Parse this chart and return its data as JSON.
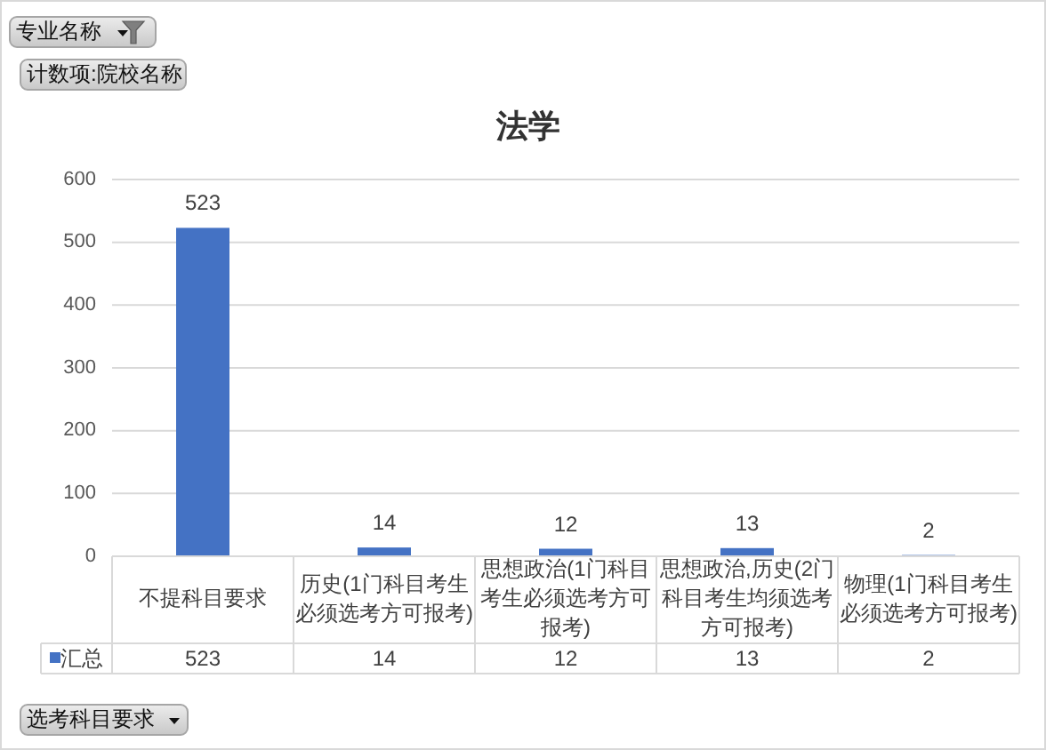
{
  "chart_data": {
    "type": "bar",
    "title": "法学",
    "ylabel": "计数项:院校名称",
    "xlabel": "选考科目要求",
    "annotations": [
      "专业名称",
      {
        "text": "523",
        "x": "不提科目要求",
        "y": 523
      },
      {
        "text": "14",
        "x": "历史(1门科目考生必须选考方可报考)",
        "y": 14
      },
      {
        "text": "12",
        "x": "思想政治(1门科目考生必须选考方可报考)",
        "y": 12
      },
      {
        "text": "13",
        "x": "思想政治,历史(2门科目考生均须选考方可报考)",
        "y": 13
      },
      {
        "text": "2",
        "x": "物理(1门科目考生必须选考方可报考)",
        "y": 2
      }
    ],
    "categories": [
      "不提科目要求",
      "历史(1门科目考生必须选考方可报考)",
      "思想政治(1门科目考生必须选考方可报考)",
      "思想政治,历史(2门科目考生均须选考方可报考)",
      "物理(1门科目考生必须选考方可报考)"
    ],
    "series": [
      {
        "name": "汇总",
        "color": "#4472c4",
        "values": [
          523,
          14,
          12,
          13,
          2
        ]
      }
    ],
    "ylim": [
      0,
      600
    ],
    "yticks": [
      0,
      100,
      200,
      300,
      400,
      500,
      600
    ],
    "grid": "y",
    "data_labels": true,
    "legend": "bottom left"
  }
}
